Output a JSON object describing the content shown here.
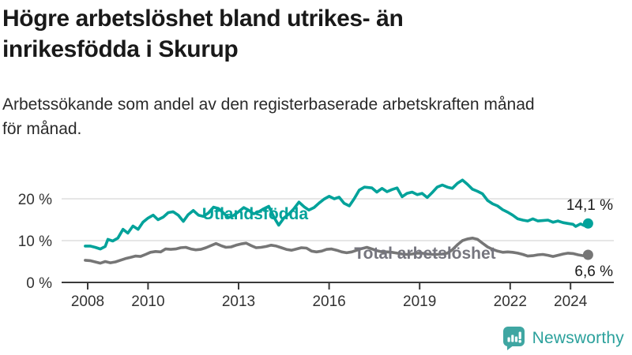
{
  "header": {
    "title_lines": [
      "Högre arbetslöshet bland utrikes- än",
      "inrikesfödda i Skurup"
    ],
    "subtitle_lines": [
      "Arbetssökande som andel av den registerbaserade arbetskraften månad",
      "för månad."
    ]
  },
  "chart_data": {
    "type": "line",
    "title": "Högre arbetslöshet bland utrikes- än inrikesfödda i Skurup",
    "subtitle": "Arbetssökande som andel av den registerbaserade arbetskraften månad för månad.",
    "unit": "%",
    "xlabel": "",
    "ylabel": "",
    "ylim": [
      0,
      26
    ],
    "xlim": [
      2007.9,
      2024.75
    ],
    "grid": "horizontal",
    "legend_position": "inline-labels",
    "yticks": [
      {
        "value": 20,
        "label": "20 %"
      },
      {
        "value": 10,
        "label": "10 %"
      },
      {
        "value": 0,
        "label": "0 %"
      }
    ],
    "xticks": [
      {
        "value": 2008,
        "label": "2008"
      },
      {
        "value": 2010,
        "label": "2010"
      },
      {
        "value": 2013,
        "label": "2013"
      },
      {
        "value": 2016,
        "label": "2016"
      },
      {
        "value": 2019,
        "label": "2019"
      },
      {
        "value": 2022,
        "label": "2022"
      },
      {
        "value": 2024,
        "label": "2024"
      }
    ],
    "series": [
      {
        "name": "Utlandsfödda",
        "color": "#00a29a",
        "end_label": "14,1 %",
        "end_value": 14.1,
        "points": [
          [
            2007.92,
            8.7
          ],
          [
            2008.08,
            8.7
          ],
          [
            2008.25,
            8.4
          ],
          [
            2008.42,
            8.0
          ],
          [
            2008.58,
            8.6
          ],
          [
            2008.67,
            10.3
          ],
          [
            2008.83,
            9.9
          ],
          [
            2009.0,
            10.6
          ],
          [
            2009.17,
            12.7
          ],
          [
            2009.33,
            11.8
          ],
          [
            2009.5,
            13.5
          ],
          [
            2009.67,
            12.7
          ],
          [
            2009.83,
            14.4
          ],
          [
            2010.0,
            15.4
          ],
          [
            2010.17,
            16.1
          ],
          [
            2010.33,
            15.0
          ],
          [
            2010.5,
            15.6
          ],
          [
            2010.67,
            16.7
          ],
          [
            2010.83,
            16.9
          ],
          [
            2011.0,
            16.1
          ],
          [
            2011.17,
            14.6
          ],
          [
            2011.33,
            16.2
          ],
          [
            2011.5,
            17.2
          ],
          [
            2011.67,
            16.1
          ],
          [
            2011.83,
            15.8
          ],
          [
            2012.0,
            16.6
          ],
          [
            2012.17,
            18.0
          ],
          [
            2012.33,
            17.7
          ],
          [
            2012.5,
            16.6
          ],
          [
            2012.67,
            15.5
          ],
          [
            2012.83,
            16.0
          ],
          [
            2013.0,
            16.9
          ],
          [
            2013.17,
            17.9
          ],
          [
            2013.33,
            17.3
          ],
          [
            2013.5,
            16.4
          ],
          [
            2013.67,
            16.9
          ],
          [
            2013.83,
            17.6
          ],
          [
            2014.0,
            18.2
          ],
          [
            2014.17,
            15.6
          ],
          [
            2014.33,
            13.7
          ],
          [
            2014.5,
            15.4
          ],
          [
            2014.67,
            16.4
          ],
          [
            2014.83,
            17.6
          ],
          [
            2015.0,
            19.2
          ],
          [
            2015.17,
            18.1
          ],
          [
            2015.33,
            17.3
          ],
          [
            2015.5,
            17.9
          ],
          [
            2015.67,
            19.0
          ],
          [
            2015.83,
            19.9
          ],
          [
            2016.0,
            20.6
          ],
          [
            2016.17,
            20.0
          ],
          [
            2016.33,
            20.4
          ],
          [
            2016.5,
            18.9
          ],
          [
            2016.67,
            18.3
          ],
          [
            2016.83,
            20.0
          ],
          [
            2017.0,
            22.1
          ],
          [
            2017.17,
            22.8
          ],
          [
            2017.42,
            22.6
          ],
          [
            2017.58,
            21.6
          ],
          [
            2017.75,
            22.5
          ],
          [
            2017.92,
            21.7
          ],
          [
            2018.08,
            22.2
          ],
          [
            2018.25,
            22.6
          ],
          [
            2018.42,
            20.5
          ],
          [
            2018.58,
            21.3
          ],
          [
            2018.75,
            21.6
          ],
          [
            2018.92,
            21.0
          ],
          [
            2019.08,
            21.3
          ],
          [
            2019.25,
            20.3
          ],
          [
            2019.42,
            21.5
          ],
          [
            2019.58,
            22.8
          ],
          [
            2019.75,
            23.3
          ],
          [
            2019.92,
            22.8
          ],
          [
            2020.08,
            22.5
          ],
          [
            2020.25,
            23.7
          ],
          [
            2020.42,
            24.5
          ],
          [
            2020.58,
            23.5
          ],
          [
            2020.75,
            22.3
          ],
          [
            2020.92,
            21.8
          ],
          [
            2021.08,
            21.2
          ],
          [
            2021.25,
            19.6
          ],
          [
            2021.42,
            18.8
          ],
          [
            2021.58,
            18.3
          ],
          [
            2021.75,
            17.4
          ],
          [
            2021.92,
            16.8
          ],
          [
            2022.08,
            16.1
          ],
          [
            2022.25,
            15.2
          ],
          [
            2022.42,
            14.9
          ],
          [
            2022.58,
            14.7
          ],
          [
            2022.75,
            15.2
          ],
          [
            2022.92,
            14.7
          ],
          [
            2023.08,
            14.8
          ],
          [
            2023.25,
            14.9
          ],
          [
            2023.42,
            14.4
          ],
          [
            2023.58,
            14.7
          ],
          [
            2023.75,
            14.3
          ],
          [
            2023.92,
            14.1
          ],
          [
            2024.08,
            13.9
          ],
          [
            2024.17,
            13.4
          ],
          [
            2024.33,
            14.0
          ],
          [
            2024.45,
            13.6
          ],
          [
            2024.58,
            14.1
          ]
        ]
      },
      {
        "name": "Total arbetslöshet",
        "color": "#767676",
        "label_color": "#75757e",
        "end_label": "6,6 %",
        "end_value": 6.6,
        "points": [
          [
            2007.92,
            5.3
          ],
          [
            2008.08,
            5.2
          ],
          [
            2008.25,
            4.9
          ],
          [
            2008.42,
            4.6
          ],
          [
            2008.58,
            5.0
          ],
          [
            2008.75,
            4.7
          ],
          [
            2008.92,
            4.9
          ],
          [
            2009.08,
            5.3
          ],
          [
            2009.25,
            5.7
          ],
          [
            2009.42,
            6.0
          ],
          [
            2009.58,
            6.3
          ],
          [
            2009.75,
            6.2
          ],
          [
            2009.92,
            6.7
          ],
          [
            2010.08,
            7.2
          ],
          [
            2010.25,
            7.4
          ],
          [
            2010.42,
            7.3
          ],
          [
            2010.58,
            8.0
          ],
          [
            2010.75,
            7.9
          ],
          [
            2010.92,
            8.0
          ],
          [
            2011.08,
            8.3
          ],
          [
            2011.25,
            8.4
          ],
          [
            2011.42,
            8.0
          ],
          [
            2011.58,
            7.8
          ],
          [
            2011.75,
            7.9
          ],
          [
            2011.92,
            8.3
          ],
          [
            2012.08,
            8.8
          ],
          [
            2012.25,
            9.3
          ],
          [
            2012.42,
            8.8
          ],
          [
            2012.58,
            8.4
          ],
          [
            2012.75,
            8.5
          ],
          [
            2012.92,
            8.9
          ],
          [
            2013.08,
            9.2
          ],
          [
            2013.25,
            9.4
          ],
          [
            2013.42,
            8.8
          ],
          [
            2013.58,
            8.3
          ],
          [
            2013.75,
            8.4
          ],
          [
            2013.92,
            8.6
          ],
          [
            2014.08,
            8.9
          ],
          [
            2014.25,
            8.7
          ],
          [
            2014.42,
            8.3
          ],
          [
            2014.58,
            7.9
          ],
          [
            2014.75,
            7.7
          ],
          [
            2014.92,
            8.0
          ],
          [
            2015.08,
            8.3
          ],
          [
            2015.25,
            8.2
          ],
          [
            2015.42,
            7.5
          ],
          [
            2015.58,
            7.3
          ],
          [
            2015.75,
            7.5
          ],
          [
            2015.92,
            7.9
          ],
          [
            2016.08,
            8.0
          ],
          [
            2016.25,
            7.7
          ],
          [
            2016.42,
            7.3
          ],
          [
            2016.58,
            7.1
          ],
          [
            2016.75,
            7.3
          ],
          [
            2016.92,
            7.7
          ],
          [
            2017.08,
            8.1
          ],
          [
            2017.25,
            8.4
          ],
          [
            2017.42,
            8.0
          ],
          [
            2017.58,
            7.6
          ],
          [
            2017.75,
            7.3
          ],
          [
            2017.92,
            7.3
          ],
          [
            2018.08,
            7.2
          ],
          [
            2018.25,
            7.0
          ],
          [
            2018.42,
            6.8
          ],
          [
            2018.58,
            6.7
          ],
          [
            2018.75,
            6.8
          ],
          [
            2018.92,
            7.0
          ],
          [
            2019.08,
            7.0
          ],
          [
            2019.25,
            6.8
          ],
          [
            2019.42,
            6.7
          ],
          [
            2019.58,
            6.7
          ],
          [
            2019.75,
            6.8
          ],
          [
            2019.92,
            7.0
          ],
          [
            2020.08,
            7.8
          ],
          [
            2020.25,
            9.0
          ],
          [
            2020.42,
            10.0
          ],
          [
            2020.58,
            10.4
          ],
          [
            2020.75,
            10.6
          ],
          [
            2020.92,
            10.3
          ],
          [
            2021.08,
            9.4
          ],
          [
            2021.25,
            8.5
          ],
          [
            2021.42,
            7.9
          ],
          [
            2021.58,
            7.5
          ],
          [
            2021.75,
            7.2
          ],
          [
            2021.92,
            7.3
          ],
          [
            2022.08,
            7.2
          ],
          [
            2022.25,
            7.0
          ],
          [
            2022.42,
            6.7
          ],
          [
            2022.58,
            6.3
          ],
          [
            2022.75,
            6.4
          ],
          [
            2022.92,
            6.6
          ],
          [
            2023.08,
            6.7
          ],
          [
            2023.25,
            6.5
          ],
          [
            2023.42,
            6.2
          ],
          [
            2023.58,
            6.5
          ],
          [
            2023.75,
            6.8
          ],
          [
            2023.92,
            7.0
          ],
          [
            2024.08,
            6.9
          ],
          [
            2024.25,
            6.6
          ],
          [
            2024.42,
            6.4
          ],
          [
            2024.58,
            6.6
          ]
        ]
      }
    ]
  },
  "footer": {
    "brand": "Newsworthy",
    "brand_color": "#2ba19c",
    "icon_color": "#3fa6a2"
  }
}
